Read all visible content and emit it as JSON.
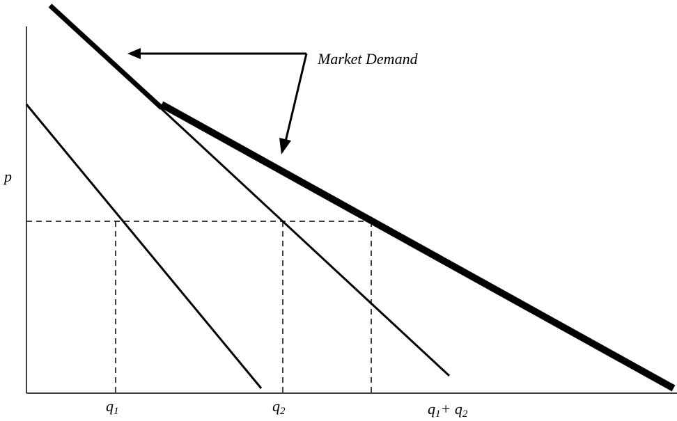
{
  "labels": {
    "p": "p",
    "q1_base": "q",
    "q1_sub": "1",
    "q2_base": "q",
    "q2_sub": "2",
    "sum_q1_base": "q",
    "sum_q1_sub": "1",
    "sum_plus": "+ ",
    "sum_q2_base": "q",
    "sum_q2_sub": "2",
    "market_demand": "Market Demand"
  },
  "colors": {
    "ink": "#000000",
    "background": "#ffffff"
  }
}
